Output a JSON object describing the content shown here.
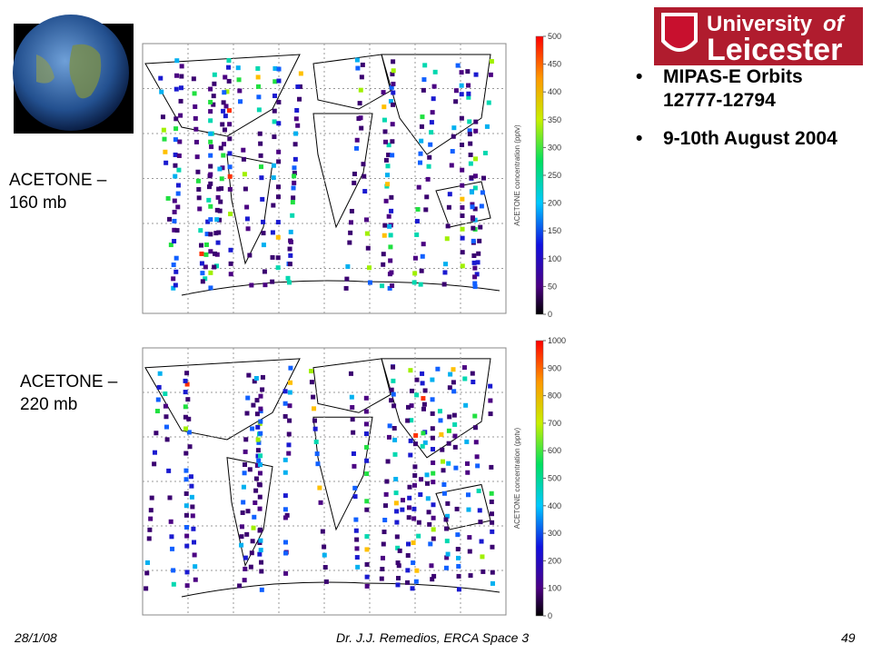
{
  "logo": {
    "line1": "University",
    "of": "of",
    "line2": "Leicester"
  },
  "panels": [
    {
      "label": "ACETONE – 160 mb",
      "colorbar_title": "ACETONE concentration (pptv)",
      "range": [
        0,
        500
      ],
      "ticks": [
        0,
        50,
        100,
        150,
        200,
        250,
        300,
        350,
        400,
        450,
        500
      ]
    },
    {
      "label": "ACETONE – 220 mb",
      "colorbar_title": "ACETONE concentration (pptv)",
      "range": [
        0,
        1000
      ],
      "ticks": [
        0,
        100,
        200,
        300,
        400,
        500,
        600,
        700,
        800,
        900,
        1000
      ]
    }
  ],
  "bullets": [
    "MIPAS-E Orbits 12777-12794",
    "9-10th August 2004"
  ],
  "footer": {
    "date": "28/1/08",
    "author": "Dr. J.J. Remedios, ERCA Space 3",
    "page": "49"
  }
}
